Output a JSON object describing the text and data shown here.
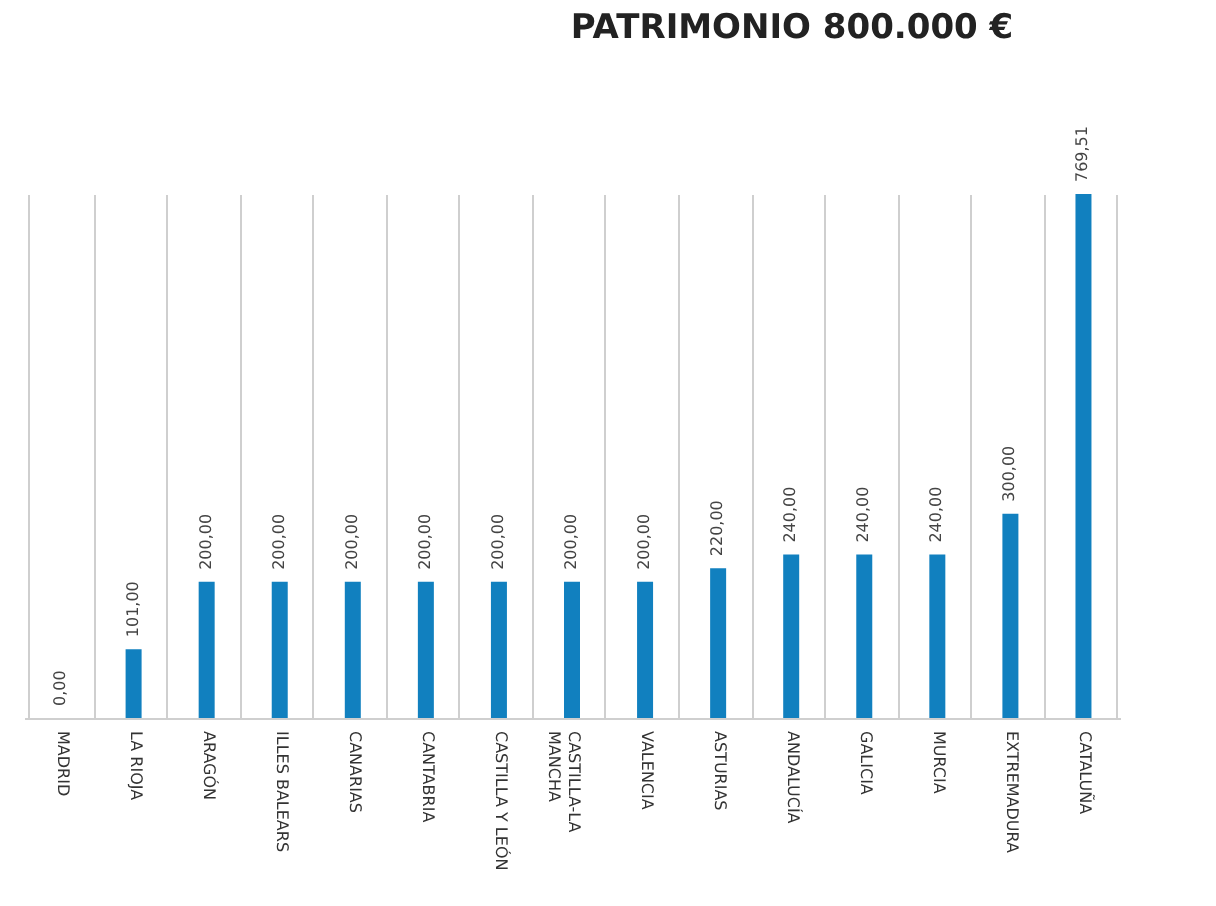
{
  "chart_data": {
    "type": "bar",
    "title": "PATRIMONIO 800.000 €",
    "categories": [
      "MADRID",
      "LA RIOJA",
      "ARAGÓN",
      "ILLES BALEARS",
      "CANARIAS",
      "CANTABRIA",
      "CASTILLA Y LEÓN",
      "CASTILLA-LA MANCHA",
      "VALENCIA",
      "ASTURIAS",
      "ANDALUCÍA",
      "GALICIA",
      "MURCIA",
      "EXTREMADURA",
      "CATALUÑA"
    ],
    "values": [
      0,
      101,
      200,
      200,
      200,
      200,
      200,
      200,
      200,
      220,
      240,
      240,
      240,
      300,
      769.51
    ],
    "value_labels": [
      "0,00",
      "101,00",
      "200,00",
      "200,00",
      "200,00",
      "200,00",
      "200,00",
      "200,00",
      "200,00",
      "220,00",
      "240,00",
      "240,00",
      "240,00",
      "300,00",
      "769,51"
    ],
    "color": "#1180bf",
    "grid": "x"
  }
}
